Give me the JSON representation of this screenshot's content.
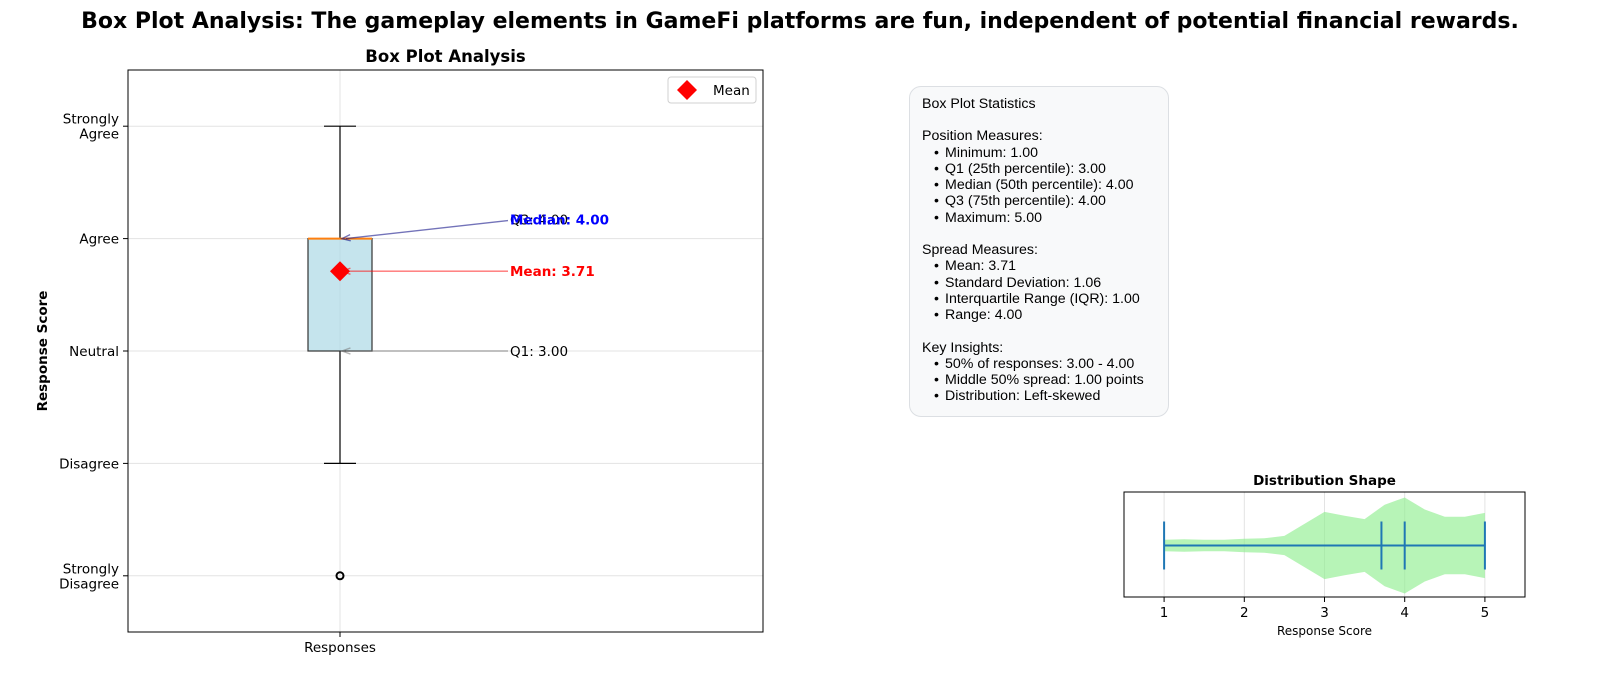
{
  "suptitle": "Box Plot Analysis: The gameplay elements in GameFi platforms are fun, independent of potential financial rewards.",
  "chart_data": [
    {
      "type": "box",
      "title": "Box Plot Analysis",
      "xlabel": "",
      "ylabel": "Response Score",
      "categories": [
        "Responses"
      ],
      "ylim": [
        0.5,
        5.5
      ],
      "yticks": [
        1,
        2,
        3,
        4,
        5
      ],
      "ytick_labels": [
        "Strongly\nDisagree",
        "Disagree",
        "Neutral",
        "Agree",
        "Strongly\nAgree"
      ],
      "grid": true,
      "box": {
        "whisker_low": 2.0,
        "q1": 3.0,
        "median": 4.0,
        "q3": 4.0,
        "whisker_high": 5.0,
        "outliers": [
          1.0
        ]
      },
      "mean": 3.71,
      "legend": {
        "entries": [
          "Mean"
        ],
        "placement": "top-right"
      },
      "annotations": [
        {
          "text": "Q3: 4.00",
          "y": 4.0,
          "color": "#000000",
          "bold": false
        },
        {
          "text": "Median: 4.00",
          "y": 4.0,
          "color": "#0000ff",
          "bold": true
        },
        {
          "text": "Mean: 3.71",
          "y": 3.71,
          "color": "#ff0000",
          "bold": true
        },
        {
          "text": "Q1: 3.00",
          "y": 3.0,
          "color": "#000000",
          "bold": false
        }
      ],
      "colors": {
        "box_fill": "#add8e6",
        "median": "#ff7f0e",
        "mean": "#ff0000"
      }
    },
    {
      "type": "violin",
      "title": "Distribution Shape",
      "xlabel": "Response Score",
      "xlim": [
        0.5,
        5.5
      ],
      "xticks": [
        1,
        2,
        3,
        4,
        5
      ],
      "min": 1,
      "max": 5,
      "mean": 3.71,
      "median": 4.0,
      "density": [
        [
          1.0,
          0.12
        ],
        [
          1.25,
          0.13
        ],
        [
          1.5,
          0.12
        ],
        [
          1.75,
          0.12
        ],
        [
          2.0,
          0.14
        ],
        [
          2.25,
          0.15
        ],
        [
          2.5,
          0.2
        ],
        [
          2.75,
          0.45
        ],
        [
          3.0,
          0.7
        ],
        [
          3.25,
          0.62
        ],
        [
          3.5,
          0.55
        ],
        [
          3.75,
          0.85
        ],
        [
          4.0,
          1.0
        ],
        [
          4.25,
          0.75
        ],
        [
          4.5,
          0.6
        ],
        [
          4.75,
          0.6
        ],
        [
          5.0,
          0.68
        ]
      ],
      "grid": true,
      "colors": {
        "fill": "#90ee90",
        "lines": "#1f77b4"
      }
    }
  ],
  "stats": {
    "title": "Box Plot Statistics",
    "sections": [
      {
        "heading": "Position Measures:",
        "items": [
          "Minimum: 1.00",
          "Q1 (25th percentile): 3.00",
          "Median (50th percentile): 4.00",
          "Q3 (75th percentile): 4.00",
          "Maximum: 5.00"
        ]
      },
      {
        "heading": "Spread Measures:",
        "items": [
          "Mean: 3.71",
          "Standard Deviation: 1.06",
          "Interquartile Range (IQR): 1.00",
          "Range: 4.00"
        ]
      },
      {
        "heading": "Key Insights:",
        "items": [
          "50% of responses: 3.00 - 4.00",
          "Middle 50% spread: 1.00 points",
          "Distribution: Left-skewed"
        ]
      }
    ]
  }
}
